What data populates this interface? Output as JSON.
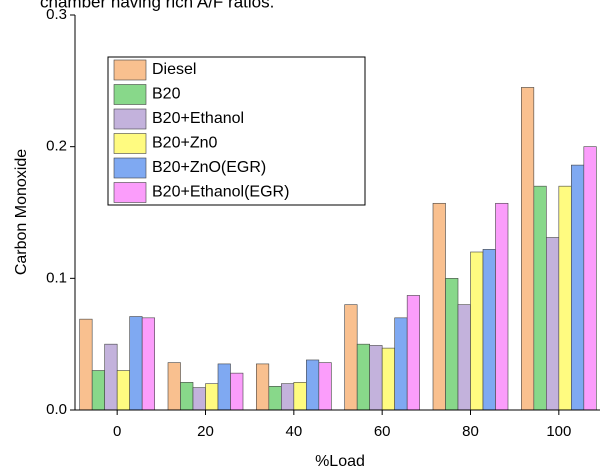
{
  "caption": "chamber having rich A/F ratios.",
  "chart_data": {
    "type": "bar",
    "xlabel": "%Load",
    "ylabel": "Carbon Monoxide",
    "categories": [
      "0",
      "20",
      "40",
      "60",
      "80",
      "100"
    ],
    "series": [
      {
        "name": "Diesel",
        "color": "#f9c08f",
        "values": [
          0.069,
          0.036,
          0.035,
          0.08,
          0.157,
          0.245
        ]
      },
      {
        "name": "B20",
        "color": "#88d88a",
        "values": [
          0.03,
          0.021,
          0.018,
          0.05,
          0.1,
          0.17
        ]
      },
      {
        "name": "B20+Ethanol",
        "color": "#c3b2dc",
        "values": [
          0.05,
          0.017,
          0.02,
          0.049,
          0.08,
          0.131
        ]
      },
      {
        "name": "B20+Zn0",
        "color": "#fffb80",
        "values": [
          0.03,
          0.02,
          0.021,
          0.047,
          0.12,
          0.17
        ]
      },
      {
        "name": "B20+ZnO(EGR)",
        "color": "#7fa9f2",
        "values": [
          0.071,
          0.035,
          0.038,
          0.07,
          0.122,
          0.186
        ]
      },
      {
        "name": "B20+Ethanol(EGR)",
        "color": "#fb9dfb",
        "values": [
          0.07,
          0.028,
          0.036,
          0.087,
          0.157,
          0.2
        ]
      }
    ],
    "ylim": [
      0,
      0.3
    ],
    "yticks": [
      {
        "value": 0,
        "label": "0.0"
      },
      {
        "value": 0.1,
        "label": "0.1"
      },
      {
        "value": 0.2,
        "label": "0.2"
      },
      {
        "value": 0.3,
        "label": "0.3"
      }
    ],
    "legend": "upper left"
  }
}
